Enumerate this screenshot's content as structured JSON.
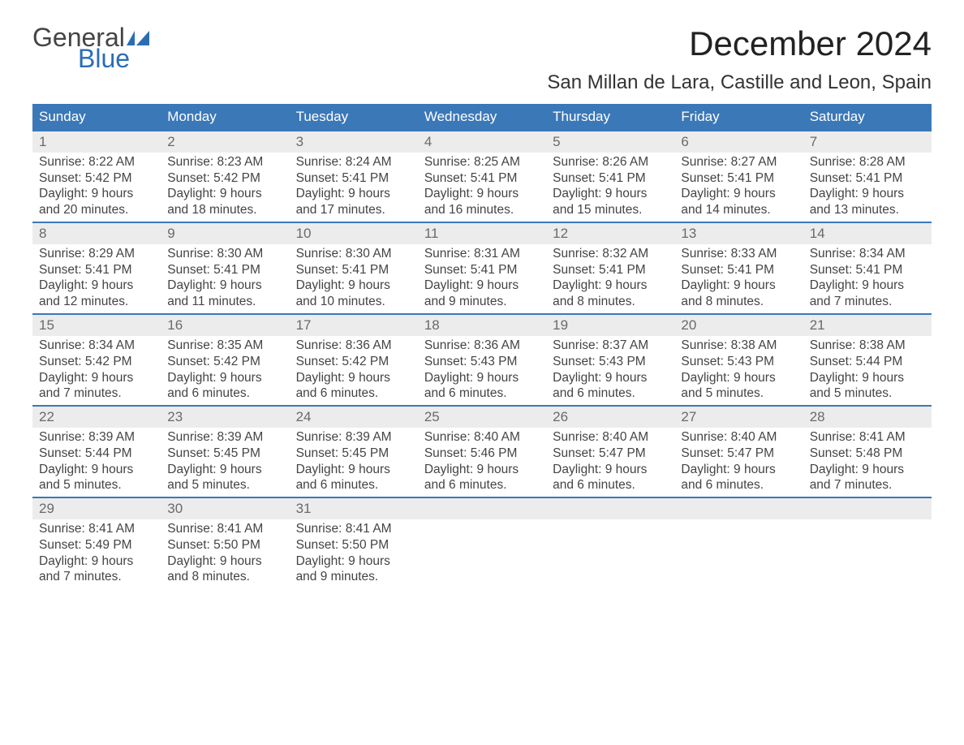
{
  "logo": {
    "text_general": "General",
    "text_blue": "Blue",
    "flag_color": "#2a6db5"
  },
  "title": "December 2024",
  "location": "San Millan de Lara, Castille and Leon, Spain",
  "colors": {
    "header_bg": "#3b78b8",
    "header_text": "#ffffff",
    "daynum_bg": "#ececec",
    "daynum_text": "#6a6a6a",
    "body_text": "#444444",
    "week_border": "#3b78b8",
    "page_bg": "#ffffff"
  },
  "fonts": {
    "title_size": 42,
    "location_size": 24,
    "dayhead_size": 17,
    "body_size": 15.5
  },
  "day_headers": [
    "Sunday",
    "Monday",
    "Tuesday",
    "Wednesday",
    "Thursday",
    "Friday",
    "Saturday"
  ],
  "weeks": [
    [
      {
        "n": "1",
        "sunrise": "8:22 AM",
        "sunset": "5:42 PM",
        "dl1": "Daylight: 9 hours",
        "dl2": "and 20 minutes."
      },
      {
        "n": "2",
        "sunrise": "8:23 AM",
        "sunset": "5:42 PM",
        "dl1": "Daylight: 9 hours",
        "dl2": "and 18 minutes."
      },
      {
        "n": "3",
        "sunrise": "8:24 AM",
        "sunset": "5:41 PM",
        "dl1": "Daylight: 9 hours",
        "dl2": "and 17 minutes."
      },
      {
        "n": "4",
        "sunrise": "8:25 AM",
        "sunset": "5:41 PM",
        "dl1": "Daylight: 9 hours",
        "dl2": "and 16 minutes."
      },
      {
        "n": "5",
        "sunrise": "8:26 AM",
        "sunset": "5:41 PM",
        "dl1": "Daylight: 9 hours",
        "dl2": "and 15 minutes."
      },
      {
        "n": "6",
        "sunrise": "8:27 AM",
        "sunset": "5:41 PM",
        "dl1": "Daylight: 9 hours",
        "dl2": "and 14 minutes."
      },
      {
        "n": "7",
        "sunrise": "8:28 AM",
        "sunset": "5:41 PM",
        "dl1": "Daylight: 9 hours",
        "dl2": "and 13 minutes."
      }
    ],
    [
      {
        "n": "8",
        "sunrise": "8:29 AM",
        "sunset": "5:41 PM",
        "dl1": "Daylight: 9 hours",
        "dl2": "and 12 minutes."
      },
      {
        "n": "9",
        "sunrise": "8:30 AM",
        "sunset": "5:41 PM",
        "dl1": "Daylight: 9 hours",
        "dl2": "and 11 minutes."
      },
      {
        "n": "10",
        "sunrise": "8:30 AM",
        "sunset": "5:41 PM",
        "dl1": "Daylight: 9 hours",
        "dl2": "and 10 minutes."
      },
      {
        "n": "11",
        "sunrise": "8:31 AM",
        "sunset": "5:41 PM",
        "dl1": "Daylight: 9 hours",
        "dl2": "and 9 minutes."
      },
      {
        "n": "12",
        "sunrise": "8:32 AM",
        "sunset": "5:41 PM",
        "dl1": "Daylight: 9 hours",
        "dl2": "and 8 minutes."
      },
      {
        "n": "13",
        "sunrise": "8:33 AM",
        "sunset": "5:41 PM",
        "dl1": "Daylight: 9 hours",
        "dl2": "and 8 minutes."
      },
      {
        "n": "14",
        "sunrise": "8:34 AM",
        "sunset": "5:41 PM",
        "dl1": "Daylight: 9 hours",
        "dl2": "and 7 minutes."
      }
    ],
    [
      {
        "n": "15",
        "sunrise": "8:34 AM",
        "sunset": "5:42 PM",
        "dl1": "Daylight: 9 hours",
        "dl2": "and 7 minutes."
      },
      {
        "n": "16",
        "sunrise": "8:35 AM",
        "sunset": "5:42 PM",
        "dl1": "Daylight: 9 hours",
        "dl2": "and 6 minutes."
      },
      {
        "n": "17",
        "sunrise": "8:36 AM",
        "sunset": "5:42 PM",
        "dl1": "Daylight: 9 hours",
        "dl2": "and 6 minutes."
      },
      {
        "n": "18",
        "sunrise": "8:36 AM",
        "sunset": "5:43 PM",
        "dl1": "Daylight: 9 hours",
        "dl2": "and 6 minutes."
      },
      {
        "n": "19",
        "sunrise": "8:37 AM",
        "sunset": "5:43 PM",
        "dl1": "Daylight: 9 hours",
        "dl2": "and 6 minutes."
      },
      {
        "n": "20",
        "sunrise": "8:38 AM",
        "sunset": "5:43 PM",
        "dl1": "Daylight: 9 hours",
        "dl2": "and 5 minutes."
      },
      {
        "n": "21",
        "sunrise": "8:38 AM",
        "sunset": "5:44 PM",
        "dl1": "Daylight: 9 hours",
        "dl2": "and 5 minutes."
      }
    ],
    [
      {
        "n": "22",
        "sunrise": "8:39 AM",
        "sunset": "5:44 PM",
        "dl1": "Daylight: 9 hours",
        "dl2": "and 5 minutes."
      },
      {
        "n": "23",
        "sunrise": "8:39 AM",
        "sunset": "5:45 PM",
        "dl1": "Daylight: 9 hours",
        "dl2": "and 5 minutes."
      },
      {
        "n": "24",
        "sunrise": "8:39 AM",
        "sunset": "5:45 PM",
        "dl1": "Daylight: 9 hours",
        "dl2": "and 6 minutes."
      },
      {
        "n": "25",
        "sunrise": "8:40 AM",
        "sunset": "5:46 PM",
        "dl1": "Daylight: 9 hours",
        "dl2": "and 6 minutes."
      },
      {
        "n": "26",
        "sunrise": "8:40 AM",
        "sunset": "5:47 PM",
        "dl1": "Daylight: 9 hours",
        "dl2": "and 6 minutes."
      },
      {
        "n": "27",
        "sunrise": "8:40 AM",
        "sunset": "5:47 PM",
        "dl1": "Daylight: 9 hours",
        "dl2": "and 6 minutes."
      },
      {
        "n": "28",
        "sunrise": "8:41 AM",
        "sunset": "5:48 PM",
        "dl1": "Daylight: 9 hours",
        "dl2": "and 7 minutes."
      }
    ],
    [
      {
        "n": "29",
        "sunrise": "8:41 AM",
        "sunset": "5:49 PM",
        "dl1": "Daylight: 9 hours",
        "dl2": "and 7 minutes."
      },
      {
        "n": "30",
        "sunrise": "8:41 AM",
        "sunset": "5:50 PM",
        "dl1": "Daylight: 9 hours",
        "dl2": "and 8 minutes."
      },
      {
        "n": "31",
        "sunrise": "8:41 AM",
        "sunset": "5:50 PM",
        "dl1": "Daylight: 9 hours",
        "dl2": "and 9 minutes."
      },
      null,
      null,
      null,
      null
    ]
  ],
  "labels": {
    "sunrise_prefix": "Sunrise: ",
    "sunset_prefix": "Sunset: "
  }
}
